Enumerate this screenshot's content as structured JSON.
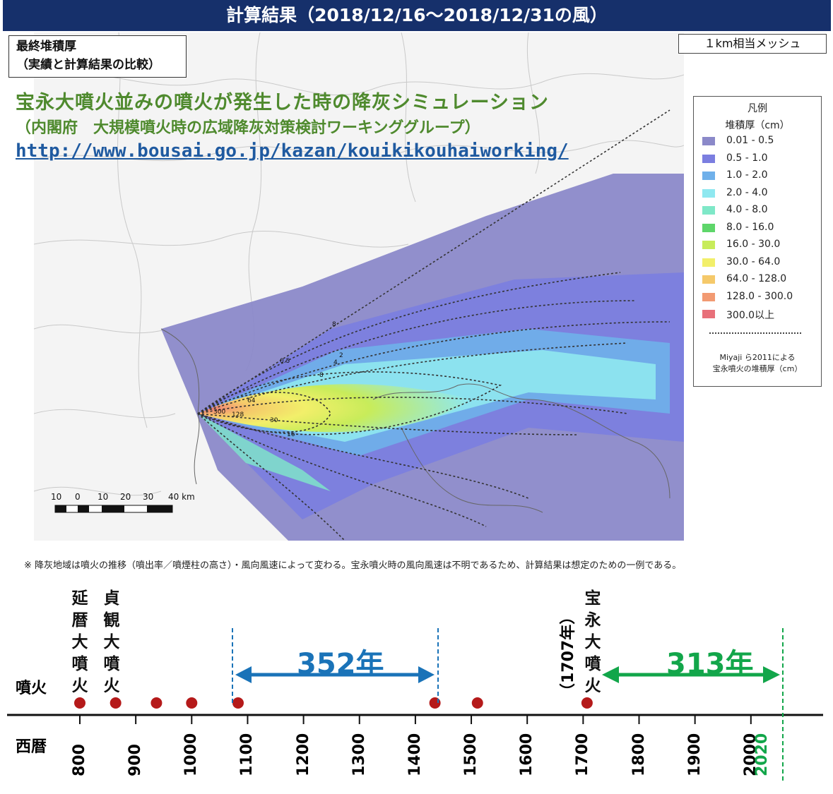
{
  "banner": "計算結果（2018/12/16〜2018/12/31の風）",
  "map": {
    "title_line1": "最終堆積厚",
    "title_line2": "（実績と計算結果の比較）",
    "mesh_label": "１km相当メッシュ",
    "sim_title": "宝永大噴火並みの噴火が発生した時の降灰シミュレーション",
    "sim_org": "（内閣府　大規模噴火時の広域降灰対策検討ワーキンググループ）",
    "sim_url": "http://www.bousai.go.jp/kazan/kouikikouhaiworking/",
    "isopach_labels": [
      "8",
      "0.5",
      "2",
      "4",
      "8",
      "64",
      "300",
      "128",
      "30",
      "16"
    ],
    "scale_labels": [
      "10",
      "0",
      "10",
      "20",
      "30",
      "40 km"
    ],
    "colors": {
      "banner": "#16306b",
      "sim_text": "#4f8a2e",
      "url": "#1f5aa0"
    }
  },
  "legend": {
    "title": "凡例",
    "unit": "堆積厚（cm）",
    "items": [
      {
        "range": "0.01 - 0.5",
        "color": "#8b89c9"
      },
      {
        "range": "0.5 - 1.0",
        "color": "#7b7ee0"
      },
      {
        "range": "1.0 - 2.0",
        "color": "#6fb0ea"
      },
      {
        "range": "2.0 - 4.0",
        "color": "#8fe8f0"
      },
      {
        "range": "4.0 - 8.0",
        "color": "#7fe8c8"
      },
      {
        "range": "8.0 - 16.0",
        "color": "#5ed66a"
      },
      {
        "range": "16.0 - 30.0",
        "color": "#c8ec5a"
      },
      {
        "range": "30.0 - 64.0",
        "color": "#f2ef6a"
      },
      {
        "range": "64.0 - 128.0",
        "color": "#f5c96a"
      },
      {
        "range": "128.0 - 300.0",
        "color": "#f29a72"
      },
      {
        "range": "300.0以上",
        "color": "#e8707a"
      }
    ],
    "note_line1": "Miyaji ら2011による",
    "note_line2": "宝永噴火の堆積厚（cm）"
  },
  "note": "※ 降灰地域は噴火の推移（噴出率／噴煙柱の高さ）・風向風速によって変わる。宝永噴火時の風向風速は不明であるため、計算結果は想定のための一例である。",
  "timeline": {
    "row_eruption": "噴火",
    "row_year": "西暦",
    "eruption_labels": [
      {
        "text": "延暦大噴火"
      },
      {
        "text": "貞観大噴火"
      },
      {
        "text": "宝永大噴火"
      }
    ],
    "hoei_year": "（1707年）",
    "intervals": [
      {
        "label": "352年",
        "color": "#1a73b8"
      },
      {
        "label": "313年",
        "color": "#12a64a"
      }
    ],
    "year_ticks": [
      "800",
      "900",
      "1000",
      "1100",
      "1200",
      "1300",
      "1400",
      "1500",
      "1600",
      "1700",
      "1800",
      "1900",
      "2000"
    ],
    "current_year": "2020",
    "eruption_years": [
      800,
      864,
      937,
      1000,
      1083,
      1435,
      1511,
      1707
    ],
    "dot_color": "#b51a1a"
  }
}
